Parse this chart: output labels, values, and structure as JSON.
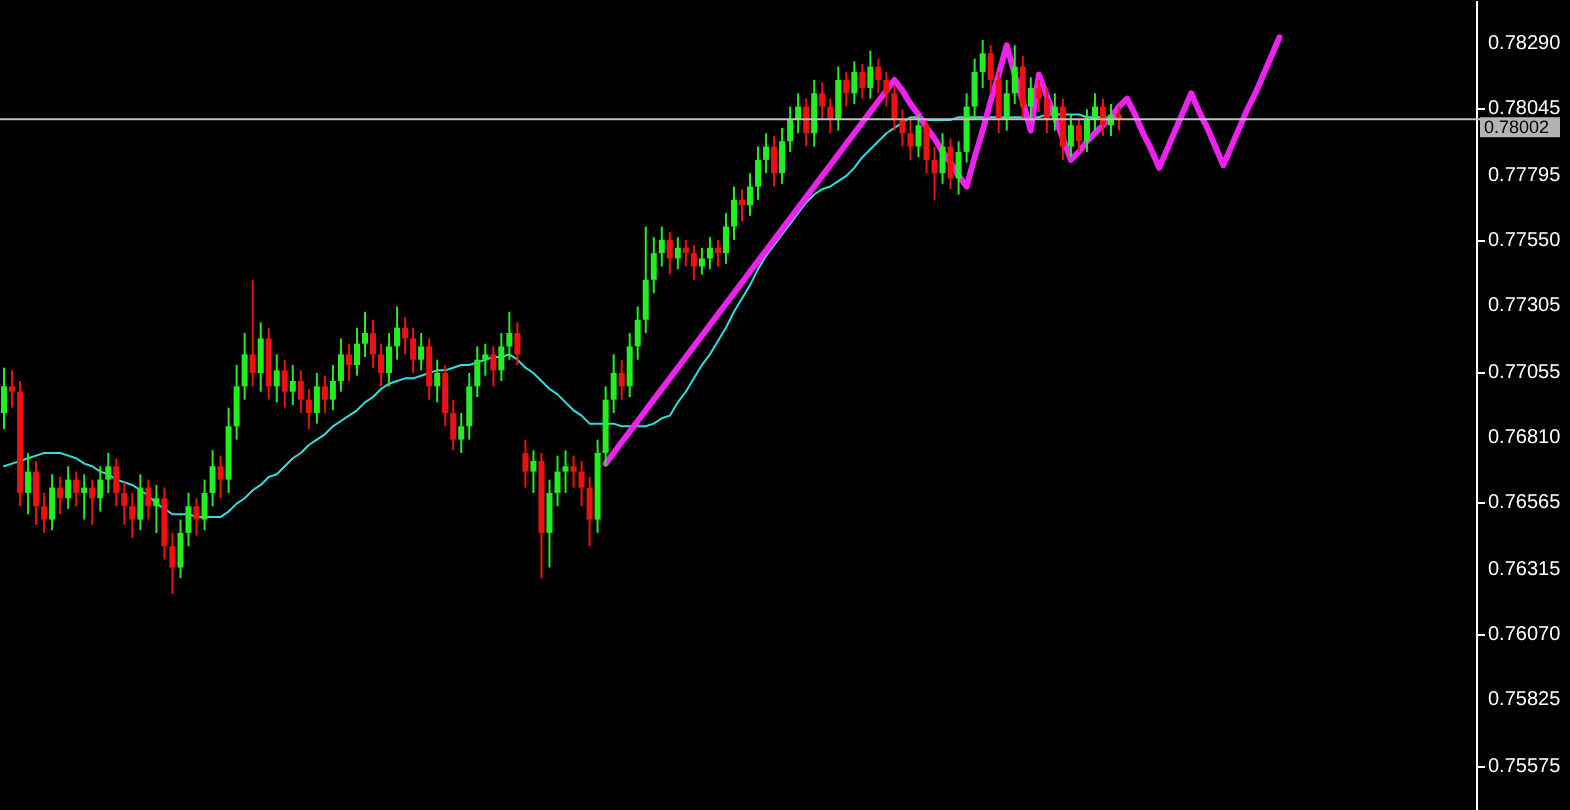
{
  "chart_data": {
    "type": "candlestick",
    "categories": [
      null,
      null,
      null,
      null,
      null,
      null,
      null,
      null,
      null,
      null,
      null,
      null,
      null,
      null,
      null,
      null,
      null,
      null,
      null,
      null,
      null,
      null,
      null,
      null,
      null,
      null,
      null,
      null,
      null,
      null,
      null,
      null,
      null,
      null,
      null,
      null,
      null,
      null,
      null,
      null,
      null,
      null,
      null,
      null,
      null,
      null,
      null,
      null,
      null,
      null,
      null,
      null,
      null,
      null,
      null,
      null,
      null,
      null,
      null,
      null,
      null,
      null,
      null,
      null,
      null,
      null,
      null,
      null,
      null,
      null,
      null,
      null,
      null,
      null,
      null,
      null,
      null,
      null,
      null,
      null,
      null,
      null,
      null,
      null,
      null,
      null,
      null,
      null,
      null,
      null,
      null,
      null,
      null,
      null,
      null,
      null,
      null,
      null,
      null,
      null,
      null,
      null,
      null,
      null,
      null,
      null,
      null,
      null,
      null,
      null,
      null,
      null,
      null,
      null,
      null,
      null,
      null,
      null,
      null,
      null,
      null,
      null,
      null,
      null,
      null,
      null,
      null,
      null,
      null,
      null,
      null,
      null,
      null,
      null,
      null,
      null,
      null,
      null,
      null,
      null,
      null,
      null,
      null,
      null,
      null,
      null,
      null,
      null,
      null,
      null,
      null,
      null,
      null,
      null,
      null,
      null,
      null,
      null,
      null,
      null,
      null,
      null,
      null,
      null,
      null,
      null,
      null,
      null,
      null,
      null,
      null,
      null,
      null,
      null,
      null,
      null,
      null,
      null,
      null,
      null,
      null,
      null,
      null,
      null
    ],
    "ohlc": [
      [
        0.769,
        0.7707,
        0.7684,
        0.77
      ],
      [
        0.77,
        0.7706,
        0.7692,
        0.7698
      ],
      [
        0.7698,
        0.7702,
        0.7655,
        0.766
      ],
      [
        0.766,
        0.7675,
        0.7652,
        0.7668
      ],
      [
        0.7668,
        0.7672,
        0.7648,
        0.7655
      ],
      [
        0.7655,
        0.766,
        0.7645,
        0.765
      ],
      [
        0.765,
        0.7667,
        0.7646,
        0.7662
      ],
      [
        0.7662,
        0.7666,
        0.7652,
        0.7658
      ],
      [
        0.7658,
        0.767,
        0.7654,
        0.7665
      ],
      [
        0.7665,
        0.7668,
        0.7655,
        0.766
      ],
      [
        0.766,
        0.7667,
        0.765,
        0.7662
      ],
      [
        0.7662,
        0.7665,
        0.7648,
        0.7658
      ],
      [
        0.7658,
        0.767,
        0.7653,
        0.7665
      ],
      [
        0.7665,
        0.7675,
        0.766,
        0.767
      ],
      [
        0.767,
        0.7673,
        0.7655,
        0.766
      ],
      [
        0.766,
        0.7664,
        0.7648,
        0.7655
      ],
      [
        0.7655,
        0.766,
        0.7643,
        0.765
      ],
      [
        0.765,
        0.7667,
        0.7646,
        0.7662
      ],
      [
        0.7662,
        0.7665,
        0.765,
        0.7655
      ],
      [
        0.7655,
        0.7663,
        0.7645,
        0.7658
      ],
      [
        0.7658,
        0.7662,
        0.7635,
        0.764
      ],
      [
        0.764,
        0.7645,
        0.7622,
        0.7632
      ],
      [
        0.7632,
        0.765,
        0.7628,
        0.7645
      ],
      [
        0.7645,
        0.766,
        0.764,
        0.7655
      ],
      [
        0.7655,
        0.7658,
        0.7644,
        0.765
      ],
      [
        0.765,
        0.7665,
        0.7646,
        0.766
      ],
      [
        0.766,
        0.7676,
        0.7655,
        0.767
      ],
      [
        0.767,
        0.7674,
        0.7658,
        0.7665
      ],
      [
        0.7665,
        0.7692,
        0.766,
        0.7685
      ],
      [
        0.7685,
        0.7708,
        0.768,
        0.77
      ],
      [
        0.77,
        0.772,
        0.7695,
        0.7712
      ],
      [
        0.7712,
        0.774,
        0.77,
        0.7705
      ],
      [
        0.7705,
        0.7724,
        0.7698,
        0.7718
      ],
      [
        0.7718,
        0.7722,
        0.7695,
        0.77
      ],
      [
        0.77,
        0.7712,
        0.7694,
        0.7706
      ],
      [
        0.7706,
        0.771,
        0.7692,
        0.7698
      ],
      [
        0.7698,
        0.7708,
        0.7693,
        0.7702
      ],
      [
        0.7702,
        0.7706,
        0.769,
        0.7695
      ],
      [
        0.7695,
        0.7699,
        0.7684,
        0.769
      ],
      [
        0.769,
        0.7705,
        0.7686,
        0.77
      ],
      [
        0.77,
        0.7704,
        0.769,
        0.7695
      ],
      [
        0.7695,
        0.7708,
        0.7691,
        0.7702
      ],
      [
        0.7702,
        0.7718,
        0.7698,
        0.7712
      ],
      [
        0.7712,
        0.7716,
        0.7702,
        0.7708
      ],
      [
        0.7708,
        0.7722,
        0.7704,
        0.7716
      ],
      [
        0.7716,
        0.7728,
        0.7711,
        0.772
      ],
      [
        0.772,
        0.7725,
        0.7707,
        0.7712
      ],
      [
        0.7712,
        0.7716,
        0.77,
        0.7705
      ],
      [
        0.7705,
        0.772,
        0.77,
        0.7715
      ],
      [
        0.7715,
        0.773,
        0.771,
        0.7722
      ],
      [
        0.7722,
        0.7726,
        0.7712,
        0.7718
      ],
      [
        0.7718,
        0.7722,
        0.7705,
        0.771
      ],
      [
        0.771,
        0.772,
        0.7706,
        0.7715
      ],
      [
        0.7715,
        0.7718,
        0.7695,
        0.77
      ],
      [
        0.77,
        0.771,
        0.7694,
        0.7705
      ],
      [
        0.7705,
        0.7708,
        0.7685,
        0.769
      ],
      [
        0.769,
        0.7695,
        0.7676,
        0.768
      ],
      [
        0.768,
        0.769,
        0.7675,
        0.7685
      ],
      [
        0.7685,
        0.7705,
        0.768,
        0.77
      ],
      [
        0.77,
        0.7715,
        0.7696,
        0.771
      ],
      [
        0.771,
        0.7716,
        0.7704,
        0.7712
      ],
      [
        0.7712,
        0.7715,
        0.77,
        0.7706
      ],
      [
        0.7706,
        0.772,
        0.7702,
        0.7715
      ],
      [
        0.7715,
        0.7728,
        0.771,
        0.772
      ],
      [
        0.772,
        0.7724,
        0.7708,
        0.7712
      ],
      [
        0.7675,
        0.768,
        0.7662,
        0.7668
      ],
      [
        0.7668,
        0.7676,
        0.766,
        0.7672
      ],
      [
        0.7672,
        0.7675,
        0.7628,
        0.7645
      ],
      [
        0.7645,
        0.7665,
        0.7632,
        0.766
      ],
      [
        0.766,
        0.7674,
        0.7655,
        0.7668
      ],
      [
        0.7668,
        0.7676,
        0.766,
        0.767
      ],
      [
        0.767,
        0.7674,
        0.7662,
        0.7668
      ],
      [
        0.7668,
        0.7672,
        0.7655,
        0.7662
      ],
      [
        0.7662,
        0.7666,
        0.764,
        0.765
      ],
      [
        0.765,
        0.768,
        0.7645,
        0.7675
      ],
      [
        0.7675,
        0.77,
        0.767,
        0.7695
      ],
      [
        0.7695,
        0.7712,
        0.769,
        0.7705
      ],
      [
        0.7705,
        0.771,
        0.7695,
        0.77
      ],
      [
        0.77,
        0.772,
        0.7696,
        0.7715
      ],
      [
        0.7715,
        0.773,
        0.771,
        0.7725
      ],
      [
        0.7725,
        0.776,
        0.772,
        0.774
      ],
      [
        0.774,
        0.7756,
        0.7735,
        0.775
      ],
      [
        0.775,
        0.776,
        0.7745,
        0.7755
      ],
      [
        0.7755,
        0.7758,
        0.7742,
        0.7748
      ],
      [
        0.7748,
        0.7756,
        0.7744,
        0.7752
      ],
      [
        0.7752,
        0.7755,
        0.7745,
        0.775
      ],
      [
        0.775,
        0.7753,
        0.774,
        0.7745
      ],
      [
        0.7745,
        0.7752,
        0.7742,
        0.7748
      ],
      [
        0.7748,
        0.7756,
        0.7744,
        0.7752
      ],
      [
        0.7752,
        0.7755,
        0.7745,
        0.775
      ],
      [
        0.775,
        0.7765,
        0.7746,
        0.776
      ],
      [
        0.776,
        0.7775,
        0.7755,
        0.777
      ],
      [
        0.777,
        0.7774,
        0.7762,
        0.7768
      ],
      [
        0.7768,
        0.778,
        0.7764,
        0.7775
      ],
      [
        0.7775,
        0.779,
        0.777,
        0.7785
      ],
      [
        0.7785,
        0.7795,
        0.778,
        0.779
      ],
      [
        0.779,
        0.7794,
        0.7775,
        0.778
      ],
      [
        0.778,
        0.7797,
        0.7776,
        0.7792
      ],
      [
        0.7792,
        0.7805,
        0.7788,
        0.78
      ],
      [
        0.78,
        0.781,
        0.7795,
        0.7805
      ],
      [
        0.7805,
        0.7808,
        0.779,
        0.7795
      ],
      [
        0.7795,
        0.7815,
        0.779,
        0.781
      ],
      [
        0.781,
        0.7814,
        0.78,
        0.7805
      ],
      [
        0.7805,
        0.7808,
        0.7795,
        0.78
      ],
      [
        0.78,
        0.782,
        0.7796,
        0.7815
      ],
      [
        0.7815,
        0.7818,
        0.7805,
        0.781
      ],
      [
        0.781,
        0.7822,
        0.7806,
        0.7818
      ],
      [
        0.7818,
        0.7821,
        0.7808,
        0.7812
      ],
      [
        0.7812,
        0.7826,
        0.7808,
        0.782
      ],
      [
        0.782,
        0.7823,
        0.781,
        0.7815
      ],
      [
        0.7815,
        0.7818,
        0.7805,
        0.781
      ],
      [
        0.781,
        0.7813,
        0.7796,
        0.78
      ],
      [
        0.78,
        0.7804,
        0.779,
        0.7795
      ],
      [
        0.7795,
        0.78,
        0.7785,
        0.779
      ],
      [
        0.779,
        0.7802,
        0.7786,
        0.7798
      ],
      [
        0.7798,
        0.78,
        0.778,
        0.7785
      ],
      [
        0.7785,
        0.779,
        0.777,
        0.778
      ],
      [
        0.778,
        0.7795,
        0.7776,
        0.779
      ],
      [
        0.779,
        0.7793,
        0.7774,
        0.7778
      ],
      [
        0.7778,
        0.7792,
        0.7772,
        0.7788
      ],
      [
        0.7788,
        0.781,
        0.7784,
        0.7805
      ],
      [
        0.7805,
        0.7823,
        0.78,
        0.7818
      ],
      [
        0.7818,
        0.783,
        0.7812,
        0.7825
      ],
      [
        0.7825,
        0.7828,
        0.781,
        0.7815
      ],
      [
        0.7815,
        0.7818,
        0.7795,
        0.78
      ],
      [
        0.78,
        0.7815,
        0.7796,
        0.781
      ],
      [
        0.781,
        0.7828,
        0.7806,
        0.782
      ],
      [
        0.782,
        0.7824,
        0.78,
        0.7805
      ],
      [
        0.7805,
        0.7816,
        0.78,
        0.7812
      ],
      [
        0.7812,
        0.7815,
        0.7803,
        0.7808
      ],
      [
        0.7808,
        0.7812,
        0.7795,
        0.78
      ],
      [
        0.78,
        0.781,
        0.7796,
        0.7805
      ],
      [
        0.7805,
        0.7808,
        0.7785,
        0.779
      ],
      [
        0.779,
        0.7802,
        0.7786,
        0.7798
      ],
      [
        0.7798,
        0.78,
        0.7788,
        0.7792
      ],
      [
        0.7792,
        0.7804,
        0.7788,
        0.78
      ],
      [
        0.78,
        0.781,
        0.7796,
        0.7805
      ],
      [
        0.7805,
        0.7808,
        0.7794,
        0.7798
      ],
      [
        0.7798,
        0.7806,
        0.7794,
        0.7802
      ],
      [
        0.7802,
        0.7805,
        0.7796,
        0.78
      ],
      null,
      null,
      null,
      null,
      null,
      null,
      null,
      null,
      null,
      null,
      null,
      null,
      null,
      null,
      null,
      null,
      null,
      null,
      null,
      null,
      null,
      null,
      null,
      null,
      null,
      null,
      null,
      null,
      null,
      null,
      null,
      null,
      null,
      null,
      null,
      null,
      null,
      null,
      null,
      null,
      null,
      null,
      null,
      null
    ],
    "colors": [
      "#22ee22",
      "#ee1111",
      "#ee1111",
      "#22ee22",
      "#ee1111",
      "#ee1111",
      "#22ee22",
      "#ee1111",
      "#22ee22",
      "#ee1111",
      "#22ee22",
      "#ee1111",
      "#22ee22",
      "#22ee22",
      "#ee1111",
      "#ee1111",
      "#ee1111",
      "#22ee22",
      "#ee1111",
      "#22ee22",
      "#ee1111",
      "#ee1111",
      "#22ee22",
      "#22ee22",
      "#ee1111",
      "#22ee22",
      "#22ee22",
      "#ee1111",
      "#22ee22",
      "#22ee22",
      "#22ee22",
      "#ee1111",
      "#22ee22",
      "#ee1111",
      "#22ee22",
      "#ee1111",
      "#22ee22",
      "#ee1111",
      "#ee1111",
      "#22ee22",
      "#ee1111",
      "#22ee22",
      "#22ee22",
      "#ee1111",
      "#22ee22",
      "#22ee22",
      "#ee1111",
      "#ee1111",
      "#22ee22",
      "#22ee22",
      "#ee1111",
      "#ee1111",
      "#22ee22",
      "#ee1111",
      "#22ee22",
      "#ee1111",
      "#ee1111",
      "#22ee22",
      "#22ee22",
      "#22ee22",
      "#22ee22",
      "#ee1111",
      "#22ee22",
      "#22ee22",
      "#ee1111",
      "#ee1111",
      "#22ee22",
      "#ee1111",
      "#22ee22",
      "#22ee22",
      "#22ee22",
      "#ee1111",
      "#ee1111",
      "#ee1111",
      "#22ee22",
      "#22ee22",
      "#22ee22",
      "#ee1111",
      "#22ee22",
      "#22ee22",
      "#22ee22",
      "#22ee22",
      "#22ee22",
      "#ee1111",
      "#22ee22",
      "#ee1111",
      "#ee1111",
      "#22ee22",
      "#22ee22",
      "#ee1111",
      "#22ee22",
      "#22ee22",
      "#ee1111",
      "#22ee22",
      "#22ee22",
      "#22ee22",
      "#ee1111",
      "#22ee22",
      "#22ee22",
      "#22ee22",
      "#ee1111",
      "#22ee22",
      "#ee1111",
      "#ee1111",
      "#22ee22",
      "#ee1111",
      "#22ee22",
      "#ee1111",
      "#22ee22",
      "#ee1111",
      "#ee1111",
      "#ee1111",
      "#ee1111",
      "#ee1111",
      "#22ee22",
      "#ee1111",
      "#ee1111",
      "#22ee22",
      "#ee1111",
      "#22ee22",
      "#22ee22",
      "#22ee22",
      "#22ee22",
      "#ee1111",
      "#ee1111",
      "#22ee22",
      "#22ee22",
      "#ee1111",
      "#22ee22",
      "#ee1111",
      "#ee1111",
      "#22ee22",
      "#ee1111",
      "#22ee22",
      "#ee1111",
      "#22ee22",
      "#22ee22",
      "#ee1111",
      "#22ee22",
      "#ee1111",
      null,
      null,
      null,
      null,
      null,
      null,
      null,
      null,
      null,
      null,
      null,
      null,
      null,
      null,
      null,
      null,
      null,
      null,
      null,
      null,
      null,
      null,
      null,
      null,
      null,
      null,
      null,
      null,
      null,
      null,
      null,
      null,
      null,
      null,
      null,
      null,
      null,
      null,
      null,
      null,
      null,
      null,
      null,
      null
    ],
    "series": [
      {
        "type": "line",
        "color": "#33dddd",
        "values": [
          0.767,
          0.7671,
          0.7672,
          0.7673,
          0.7674,
          0.7675,
          0.7675,
          0.7675,
          0.7674,
          0.7673,
          0.7671,
          0.767,
          0.7668,
          0.7667,
          0.7665,
          0.7664,
          0.7663,
          0.7661,
          0.7659,
          0.7656,
          0.7654,
          0.7652,
          0.7652,
          0.7652,
          0.7651,
          0.7651,
          0.7651,
          0.7651,
          0.7653,
          0.7656,
          0.7658,
          0.7661,
          0.7663,
          0.7666,
          0.7667,
          0.767,
          0.7673,
          0.7675,
          0.7678,
          0.768,
          0.7682,
          0.7685,
          0.7687,
          0.7689,
          0.7691,
          0.7694,
          0.7696,
          0.7699,
          0.7701,
          0.7702,
          0.7703,
          0.7703,
          0.7704,
          0.7705,
          0.7706,
          0.7706,
          0.7707,
          0.7708,
          0.7708,
          0.7709,
          0.771,
          0.7711,
          0.7711,
          0.7712,
          0.771,
          0.7707,
          0.7705,
          0.7702,
          0.7699,
          0.7697,
          0.7694,
          0.7691,
          0.7689,
          0.7686,
          0.7686,
          0.7686,
          0.7686,
          0.7685,
          0.7685,
          0.7685,
          0.7685,
          0.7686,
          0.7688,
          0.7689,
          0.7694,
          0.7698,
          0.7703,
          0.7708,
          0.7712,
          0.7717,
          0.7722,
          0.7728,
          0.7733,
          0.7738,
          0.7744,
          0.7749,
          0.7753,
          0.7757,
          0.7761,
          0.7765,
          0.7769,
          0.7772,
          0.7774,
          0.7775,
          0.7777,
          0.7779,
          0.7782,
          0.7786,
          0.7789,
          0.7792,
          0.7795,
          0.7797,
          0.7799,
          0.7801,
          0.7801,
          0.78,
          0.78,
          0.78,
          0.78,
          0.7801,
          0.7801,
          0.7801,
          0.7801,
          0.7801,
          0.7801,
          0.7801,
          0.7801,
          0.7801,
          0.7801,
          0.7801,
          0.7802,
          0.7802,
          0.7802,
          0.7802,
          0.7802,
          0.7801,
          0.7801,
          0.7801,
          0.7801,
          0.7801,
          null,
          null,
          null,
          null,
          null,
          null,
          null,
          null,
          null,
          null,
          null,
          null,
          null,
          null,
          null,
          null,
          null,
          null,
          null,
          null,
          null,
          null,
          null,
          null,
          null,
          null,
          null,
          null,
          null,
          null,
          null,
          null,
          null,
          null,
          null,
          null,
          null,
          null,
          null,
          null,
          null,
          null,
          null,
          null
        ]
      },
      {
        "type": "line",
        "color": "#ee22ee",
        "values": [
          null,
          null,
          null,
          null,
          null,
          null,
          null,
          null,
          null,
          null,
          null,
          null,
          null,
          null,
          null,
          null,
          null,
          null,
          null,
          null,
          null,
          null,
          null,
          null,
          null,
          null,
          null,
          null,
          null,
          null,
          null,
          null,
          null,
          null,
          null,
          null,
          null,
          null,
          null,
          null,
          null,
          null,
          null,
          null,
          null,
          null,
          null,
          null,
          null,
          null,
          null,
          null,
          null,
          null,
          null,
          null,
          null,
          null,
          null,
          null,
          null,
          null,
          null,
          null,
          null,
          null,
          null,
          null,
          null,
          null,
          null,
          null,
          null,
          null,
          null,
          0.7671,
          0.7675,
          0.7679,
          0.7683,
          0.7687,
          0.7691,
          0.7695,
          0.7699,
          0.7703,
          0.7707,
          0.7711,
          0.7715,
          0.7719,
          0.7723,
          0.7727,
          0.7731,
          0.7735,
          0.7739,
          0.7743,
          0.7747,
          0.7751,
          0.7755,
          0.7759,
          0.7763,
          0.7767,
          0.7771,
          0.7775,
          0.7779,
          0.7783,
          0.7787,
          0.7791,
          0.7795,
          0.7799,
          0.7803,
          0.7807,
          0.7811,
          0.7815,
          0.7811,
          0.7806,
          0.7802,
          0.7797,
          0.7793,
          0.7788,
          0.7784,
          0.7779,
          0.7775,
          0.7786,
          0.7796,
          0.7807,
          0.7817,
          0.7828,
          0.7817,
          0.7807,
          0.7796,
          0.7817,
          0.7809,
          0.7801,
          0.7793,
          0.7785,
          0.7788,
          0.7792,
          0.7795,
          0.7798,
          0.7801,
          0.7805,
          0.7808,
          0.7802,
          0.7795,
          0.7789,
          0.7782,
          0.7789,
          0.7796,
          0.7803,
          0.781,
          0.7803,
          0.7797,
          0.779,
          0.7783,
          0.779,
          0.7797,
          0.7804,
          0.781,
          0.7817,
          0.7824,
          0.7831,
          null,
          null,
          null,
          null,
          null,
          null,
          null,
          null,
          null,
          null,
          null,
          null,
          null,
          null,
          null,
          null,
          null,
          null,
          null,
          null,
          null,
          null,
          null,
          null
        ]
      }
    ],
    "ylim": [
      0.7541,
      0.7845
    ],
    "yticks": [
      {
        "value": 0.7829,
        "label": "0.78290"
      },
      {
        "value": 0.78045,
        "label": "0.78045"
      },
      {
        "value": 0.77795,
        "label": "0.77795"
      },
      {
        "value": 0.7755,
        "label": "0.77550"
      },
      {
        "value": 0.77305,
        "label": "0.77305"
      },
      {
        "value": 0.77055,
        "label": "0.77055"
      },
      {
        "value": 0.7681,
        "label": "0.76810"
      },
      {
        "value": 0.76565,
        "label": "0.76565"
      },
      {
        "value": 0.76315,
        "label": "0.76315"
      },
      {
        "value": 0.7607,
        "label": "0.76070"
      },
      {
        "value": 0.75825,
        "label": "0.75825"
      },
      {
        "value": 0.75575,
        "label": "0.75575"
      }
    ],
    "ref_lines": [
      {
        "axis": "y",
        "value": 0.78002,
        "label": "0.78002",
        "color": "#c0c0c0"
      }
    ],
    "tick_labels": "y"
  }
}
